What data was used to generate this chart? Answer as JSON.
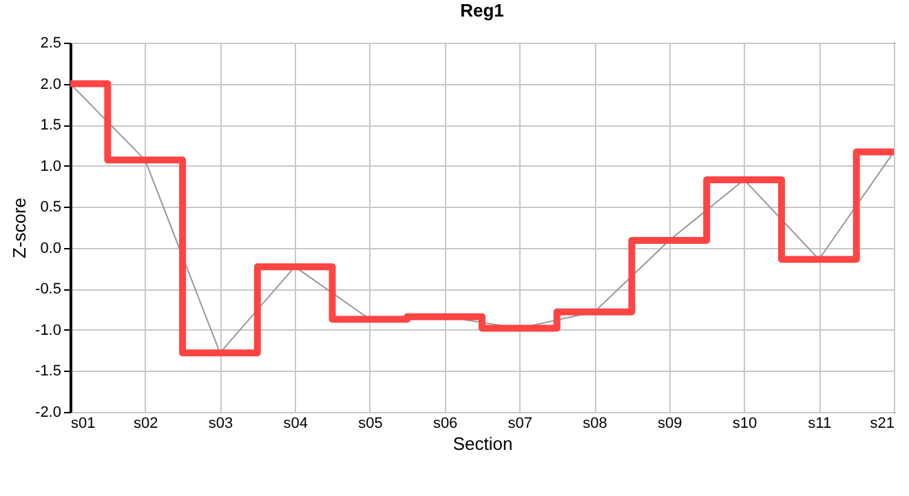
{
  "chart_data": {
    "type": "line",
    "title": "Reg1",
    "xlabel": "Section",
    "ylabel": "Z-score",
    "categories": [
      "s01",
      "s02",
      "s03",
      "s04",
      "s05",
      "s06",
      "s07",
      "s08",
      "s09",
      "s10",
      "s11",
      "s21"
    ],
    "series": [
      {
        "type": "step",
        "color": "#ff4444",
        "values": [
          2.0,
          1.07,
          -1.28,
          -0.23,
          -0.87,
          -0.84,
          -0.98,
          -0.78,
          0.09,
          0.83,
          -0.14,
          1.17
        ]
      },
      {
        "type": "line",
        "color": "#999999",
        "values": [
          2.0,
          1.07,
          -1.28,
          -0.23,
          -0.87,
          -0.84,
          -0.98,
          -0.78,
          0.09,
          0.83,
          -0.14,
          1.17
        ]
      }
    ],
    "ylim": [
      -2,
      2.5
    ],
    "yticks": [
      {
        "value": -2,
        "label": "-2.0"
      },
      -1.5,
      {
        "value": -1,
        "label": "-1.0"
      },
      -0.5,
      {
        "value": 0,
        "label": "0.0"
      },
      0.5,
      {
        "value": 1,
        "label": "1.0"
      },
      1.5,
      {
        "value": 2,
        "label": "2.0"
      },
      2.5
    ],
    "grid": true,
    "marker": "none",
    "line_style": "solid"
  }
}
